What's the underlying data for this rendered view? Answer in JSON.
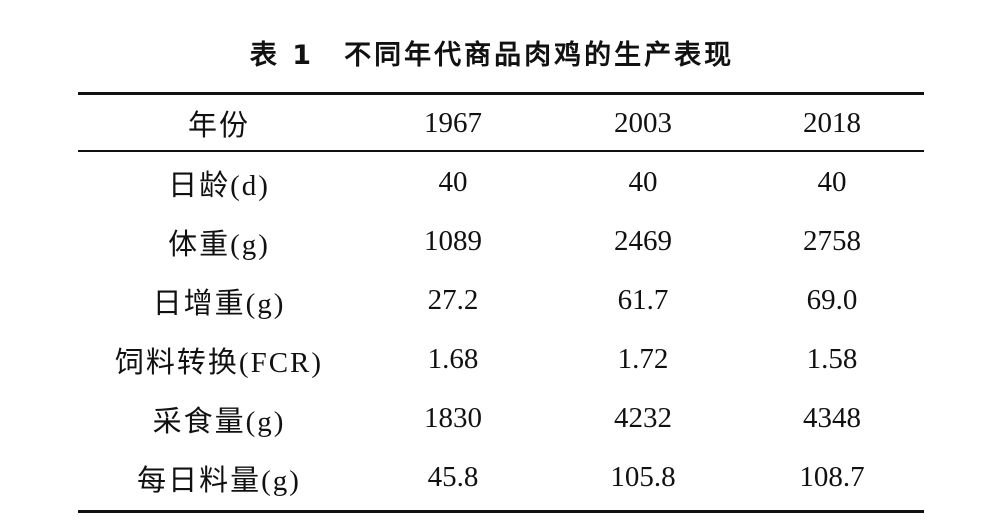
{
  "caption": {
    "number": "表 1",
    "title": "不同年代商品肉鸡的生产表现"
  },
  "table": {
    "headers": [
      "年份",
      "1967",
      "2003",
      "2018"
    ],
    "rows": [
      [
        "日龄(d)",
        "40",
        "40",
        "40"
      ],
      [
        "体重(g)",
        "1089",
        "2469",
        "2758"
      ],
      [
        "日增重(g)",
        "27.2",
        "61.7",
        "69.0"
      ],
      [
        "饲料转换(FCR)",
        "1.68",
        "1.72",
        "1.58"
      ],
      [
        "采食量(g)",
        "1830",
        "4232",
        "4348"
      ],
      [
        "每日料量(g)",
        "45.8",
        "105.8",
        "108.7"
      ]
    ]
  }
}
